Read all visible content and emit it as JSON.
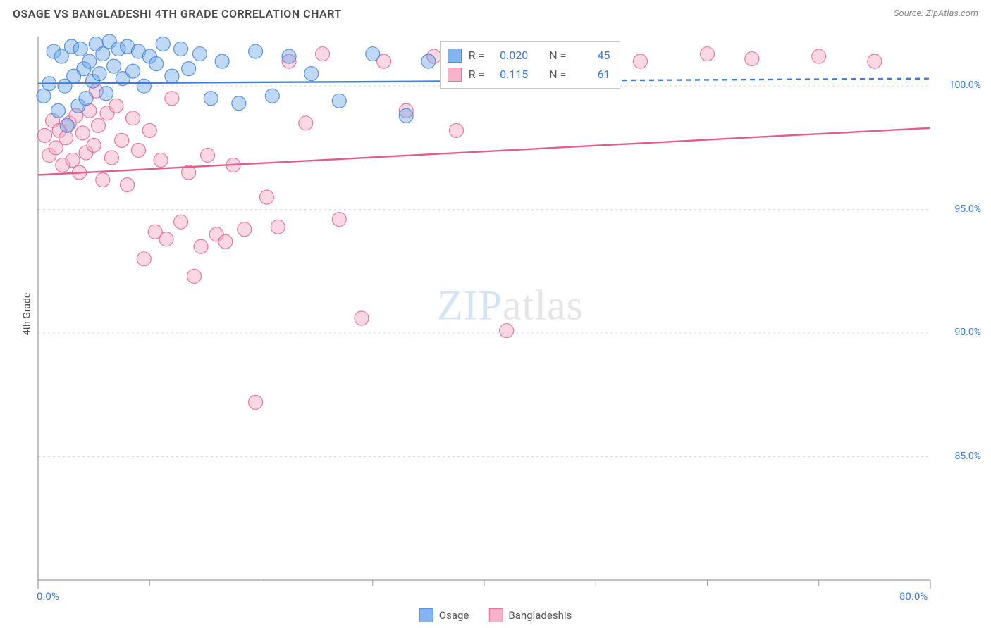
{
  "header": {
    "title": "OSAGE VS BANGLADESHI 4TH GRADE CORRELATION CHART",
    "source_prefix": "Source: ",
    "source_name": "ZipAtlas.com"
  },
  "ylabel": "4th Grade",
  "watermark": {
    "zip": "ZIP",
    "atlas": "atlas"
  },
  "chart": {
    "type": "scatter-with-regression",
    "xlim": [
      0,
      80
    ],
    "ylim": [
      80,
      102
    ],
    "xtick_major": [
      0,
      80
    ],
    "xtick_minor": [
      10,
      20,
      30,
      40,
      50,
      60,
      70
    ],
    "ytick": [
      85,
      90,
      95,
      100
    ],
    "xtick_labels": {
      "min": "0.0%",
      "max": "80.0%"
    },
    "ytick_labels": [
      "85.0%",
      "90.0%",
      "95.0%",
      "100.0%"
    ],
    "grid_color": "#d9d9d9",
    "axis_color": "#9a9a9a",
    "background": "#ffffff",
    "marker_radius": 10,
    "marker_opacity": 0.45,
    "line_width": 2.4,
    "series": {
      "osage": {
        "label": "Osage",
        "fill": "#6fa8e8",
        "stroke": "#3b7dd8",
        "r_value": "0.020",
        "n_value": "45",
        "regression": {
          "x0": 0,
          "y0": 100.1,
          "x1": 80,
          "y1": 100.3,
          "dashed_after": 40
        },
        "points": [
          [
            0.5,
            99.6
          ],
          [
            1.0,
            100.1
          ],
          [
            1.4,
            101.4
          ],
          [
            1.8,
            99.0
          ],
          [
            2.1,
            101.2
          ],
          [
            2.4,
            100.0
          ],
          [
            2.6,
            98.4
          ],
          [
            3.0,
            101.6
          ],
          [
            3.2,
            100.4
          ],
          [
            3.6,
            99.2
          ],
          [
            3.8,
            101.5
          ],
          [
            4.1,
            100.7
          ],
          [
            4.3,
            99.5
          ],
          [
            4.6,
            101.0
          ],
          [
            4.9,
            100.2
          ],
          [
            5.2,
            101.7
          ],
          [
            5.5,
            100.5
          ],
          [
            5.8,
            101.3
          ],
          [
            6.1,
            99.7
          ],
          [
            6.4,
            101.8
          ],
          [
            6.8,
            100.8
          ],
          [
            7.2,
            101.5
          ],
          [
            7.6,
            100.3
          ],
          [
            8.0,
            101.6
          ],
          [
            8.5,
            100.6
          ],
          [
            9.0,
            101.4
          ],
          [
            9.5,
            100.0
          ],
          [
            10.0,
            101.2
          ],
          [
            10.6,
            100.9
          ],
          [
            11.2,
            101.7
          ],
          [
            12.0,
            100.4
          ],
          [
            12.8,
            101.5
          ],
          [
            13.5,
            100.7
          ],
          [
            14.5,
            101.3
          ],
          [
            15.5,
            99.5
          ],
          [
            16.5,
            101.0
          ],
          [
            18.0,
            99.3
          ],
          [
            19.5,
            101.4
          ],
          [
            21.0,
            99.6
          ],
          [
            22.5,
            101.2
          ],
          [
            24.5,
            100.5
          ],
          [
            27.0,
            99.4
          ],
          [
            30.0,
            101.3
          ],
          [
            33.0,
            98.8
          ],
          [
            35.0,
            101.0
          ]
        ]
      },
      "bangla": {
        "label": "Bangladeshis",
        "fill": "#f5a8c0",
        "stroke": "#e65a8f",
        "r_value": "0.115",
        "n_value": "61",
        "regression": {
          "x0": 0,
          "y0": 96.4,
          "x1": 80,
          "y1": 98.3,
          "dashed_after": 80
        },
        "points": [
          [
            0.6,
            98.0
          ],
          [
            1.0,
            97.2
          ],
          [
            1.3,
            98.6
          ],
          [
            1.6,
            97.5
          ],
          [
            1.9,
            98.2
          ],
          [
            2.2,
            96.8
          ],
          [
            2.5,
            97.9
          ],
          [
            2.8,
            98.5
          ],
          [
            3.1,
            97.0
          ],
          [
            3.4,
            98.8
          ],
          [
            3.7,
            96.5
          ],
          [
            4.0,
            98.1
          ],
          [
            4.3,
            97.3
          ],
          [
            4.6,
            99.0
          ],
          [
            5.0,
            97.6
          ],
          [
            5.4,
            98.4
          ],
          [
            5.8,
            96.2
          ],
          [
            6.2,
            98.9
          ],
          [
            6.6,
            97.1
          ],
          [
            7.0,
            99.2
          ],
          [
            7.5,
            97.8
          ],
          [
            8.0,
            96.0
          ],
          [
            8.5,
            98.7
          ],
          [
            9.0,
            97.4
          ],
          [
            9.5,
            93.0
          ],
          [
            10.0,
            98.2
          ],
          [
            10.5,
            94.1
          ],
          [
            11.0,
            97.0
          ],
          [
            11.5,
            93.8
          ],
          [
            12.0,
            99.5
          ],
          [
            12.8,
            94.5
          ],
          [
            13.5,
            96.5
          ],
          [
            14.0,
            92.3
          ],
          [
            14.6,
            93.5
          ],
          [
            15.2,
            97.2
          ],
          [
            16.0,
            94.0
          ],
          [
            16.8,
            93.7
          ],
          [
            17.5,
            96.8
          ],
          [
            18.5,
            94.2
          ],
          [
            19.5,
            87.2
          ],
          [
            20.5,
            95.5
          ],
          [
            21.5,
            94.3
          ],
          [
            22.5,
            101.0
          ],
          [
            24.0,
            98.5
          ],
          [
            25.5,
            101.3
          ],
          [
            27.0,
            94.6
          ],
          [
            29.0,
            90.6
          ],
          [
            31.0,
            101.0
          ],
          [
            33.0,
            99.0
          ],
          [
            35.5,
            101.2
          ],
          [
            37.5,
            98.2
          ],
          [
            40.0,
            101.3
          ],
          [
            42.0,
            90.1
          ],
          [
            45.0,
            101.0
          ],
          [
            48.0,
            101.4
          ],
          [
            54.0,
            101.0
          ],
          [
            60.0,
            101.3
          ],
          [
            64.0,
            101.1
          ],
          [
            70.0,
            101.2
          ],
          [
            75.0,
            101.0
          ],
          [
            5.2,
            99.8
          ]
        ]
      }
    },
    "stat_box": {
      "r_label": "R =",
      "n_label": "N =",
      "value_color": "#3b7dd8"
    },
    "axis_label_color": "#3b7dd8"
  }
}
